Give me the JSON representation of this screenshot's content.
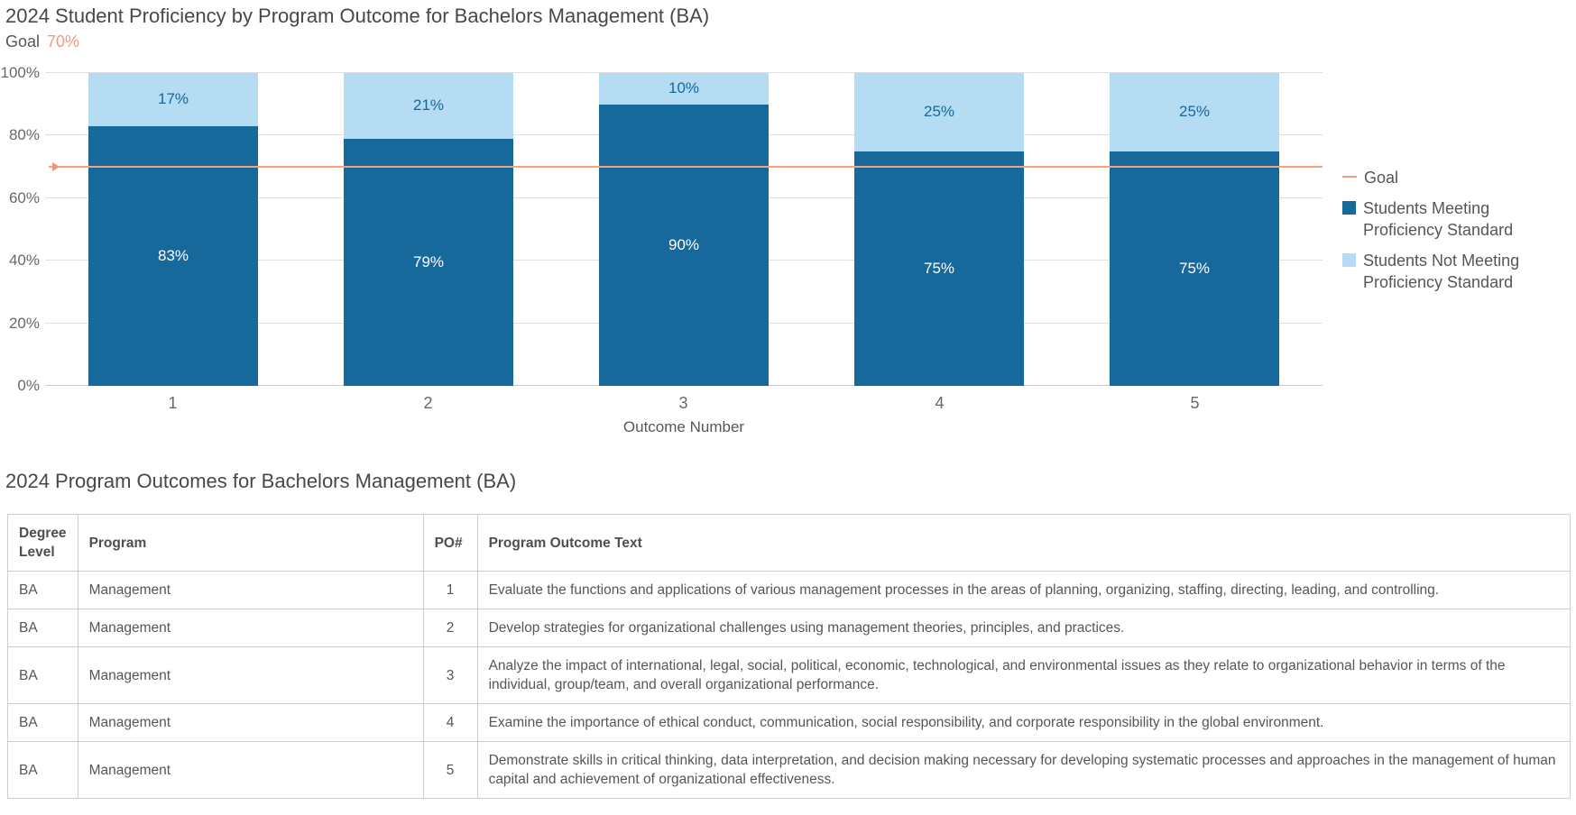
{
  "chart": {
    "title": "2024 Student Proficiency by Program Outcome for Bachelors Management (BA)",
    "goal_label": "Goal",
    "goal_value": "70%",
    "x_axis_title": "Outcome Number",
    "legend_goal_label": "Goal",
    "legend_meeting_label": "Students Meeting Proficiency Standard",
    "legend_not_meeting_label": "Students Not Meeting Proficiency Standard"
  },
  "chart_data": {
    "type": "bar",
    "stacked": true,
    "categories": [
      "1",
      "2",
      "3",
      "4",
      "5"
    ],
    "series": [
      {
        "name": "Students Meeting Proficiency Standard",
        "color": "#17699b",
        "values": [
          83,
          79,
          90,
          75,
          75
        ]
      },
      {
        "name": "Students Not Meeting Proficiency Standard",
        "color": "#b5dcf3",
        "values": [
          17,
          21,
          10,
          25,
          25
        ]
      }
    ],
    "goal": {
      "label": "Goal",
      "value": 70,
      "color": "#f2a183"
    },
    "title": "2024 Student Proficiency by Program Outcome for Bachelors Management (BA)",
    "xlabel": "Outcome Number",
    "ylabel": "",
    "ylim": [
      0,
      100
    ],
    "yticks": [
      "0%",
      "20%",
      "40%",
      "60%",
      "80%",
      "100%"
    ],
    "grid": true,
    "legend_position": "right",
    "value_label_format": "percent"
  },
  "table": {
    "title": "2024 Program Outcomes for Bachelors Management (BA)",
    "headers": [
      "Degree Level",
      "Program",
      "PO#",
      "Program Outcome Text"
    ],
    "rows": [
      {
        "degree_level": "BA",
        "program": "Management",
        "po": "1",
        "text": "Evaluate the functions and applications of various management processes in the areas of planning, organizing, staffing, directing, leading, and controlling."
      },
      {
        "degree_level": "BA",
        "program": "Management",
        "po": "2",
        "text": "Develop strategies for organizational challenges using management theories, principles, and practices."
      },
      {
        "degree_level": "BA",
        "program": "Management",
        "po": "3",
        "text": "Analyze the impact of international, legal, social, political, economic, technological, and environmental issues as they relate to organizational behavior in terms of the individual, group/team, and overall organizational performance."
      },
      {
        "degree_level": "BA",
        "program": "Management",
        "po": "4",
        "text": "Examine the importance of ethical conduct, communication, social responsibility, and corporate responsibility in the global environment."
      },
      {
        "degree_level": "BA",
        "program": "Management",
        "po": "5",
        "text": "Demonstrate skills in critical thinking, data interpretation, and decision making necessary for developing systematic processes and approaches in the management of human capital and achievement of organizational effectiveness."
      }
    ]
  },
  "colors": {
    "meeting_bar": "#17699b",
    "not_meeting_bar": "#b5dcf3",
    "goal_line": "#f2a183",
    "title_text": "#47484d",
    "axis_text": "#66686d",
    "body_text": "#55565a",
    "gridline": "#dedede",
    "table_border": "#cdcdcd"
  }
}
